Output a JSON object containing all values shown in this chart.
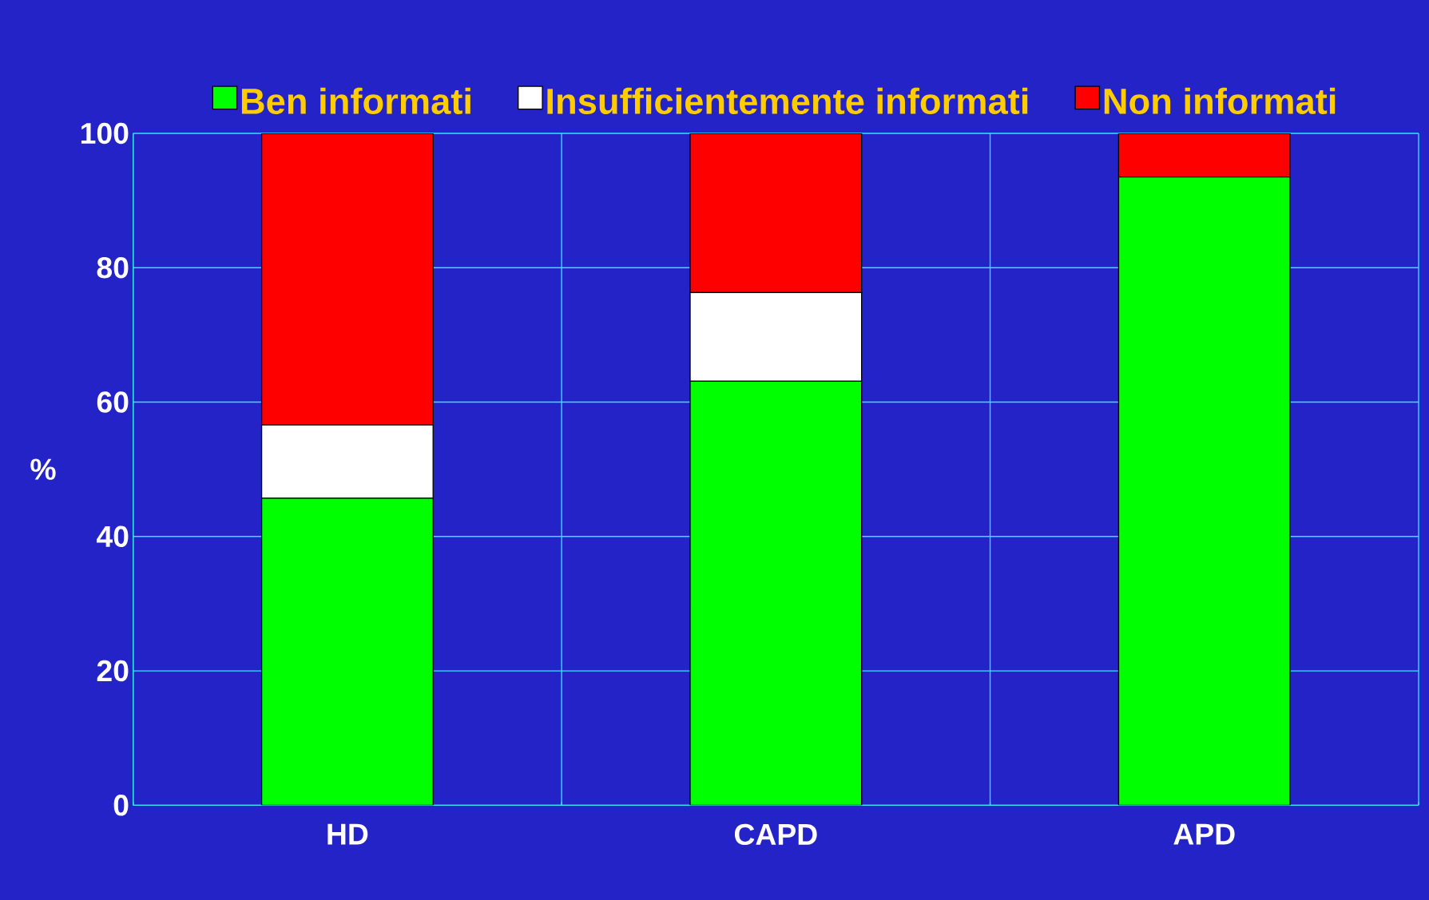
{
  "chart_data": {
    "type": "bar",
    "stacked": true,
    "ylabel": "%",
    "categories": [
      "HD",
      "CAPD",
      "APD"
    ],
    "series": [
      {
        "name": "Ben informati",
        "color": "#00ff00",
        "values": [
          45.7,
          63.1,
          93.5
        ]
      },
      {
        "name": "Insufficientemente informati",
        "color": "#ffffff",
        "values": [
          10.9,
          13.2,
          0
        ]
      },
      {
        "name": "Non informati",
        "color": "#ff0000",
        "values": [
          43.4,
          23.7,
          6.5
        ]
      }
    ],
    "ylim": [
      0,
      100
    ],
    "yticks": [
      0,
      20,
      40,
      60,
      80,
      100
    ],
    "grid": true,
    "legend": "top"
  }
}
